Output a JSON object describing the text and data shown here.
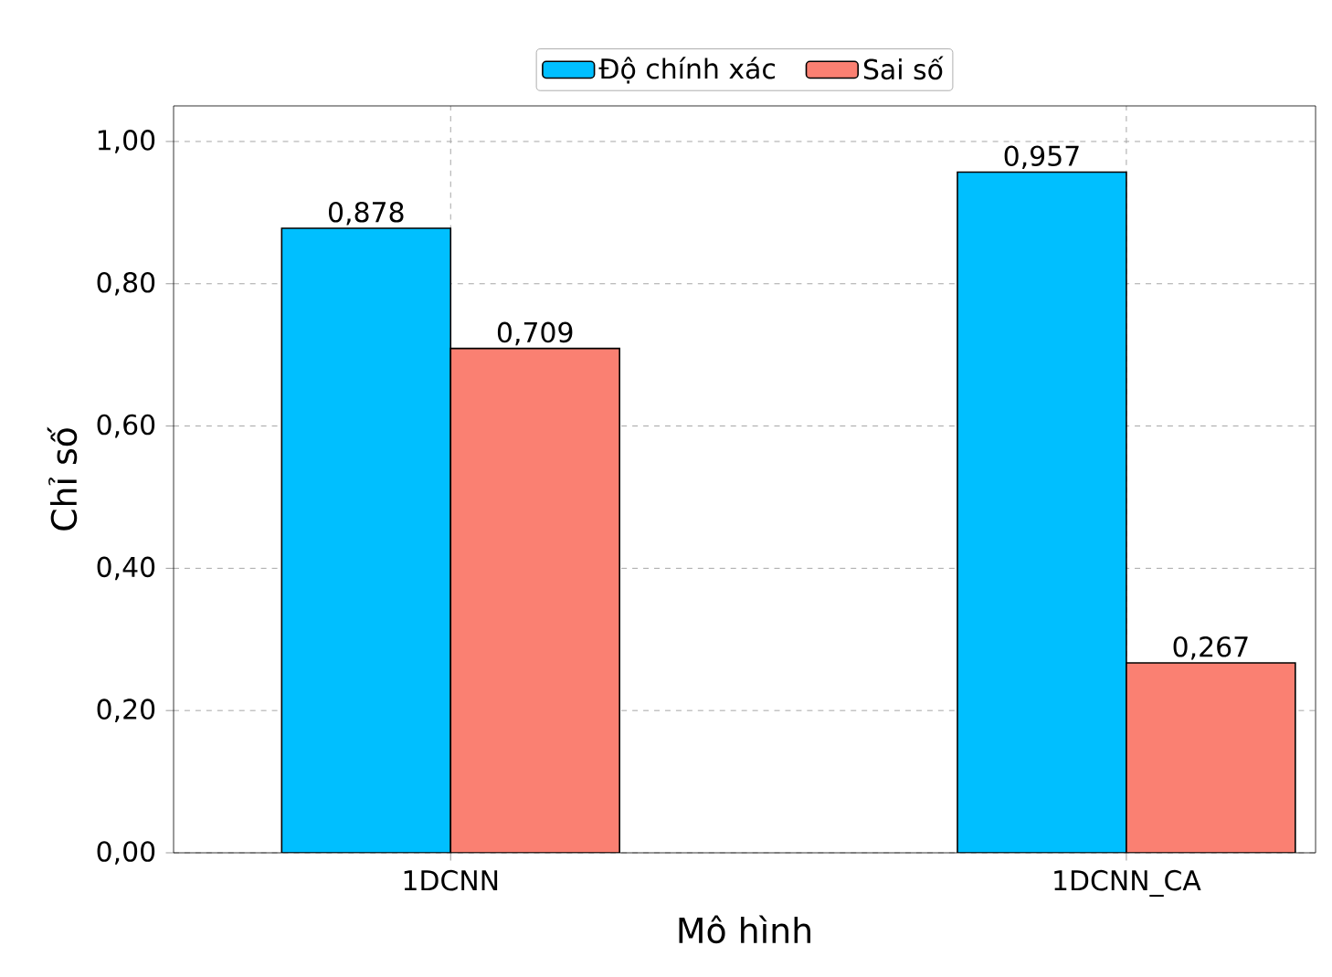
{
  "chart_data": {
    "type": "bar",
    "xlabel": "Mô hình",
    "ylabel": "Chỉ số",
    "categories": [
      "1DCNN",
      "1DCNN_CA"
    ],
    "series": [
      {
        "name": "Độ chính xác",
        "color": "#00bfff",
        "values": [
          0.878,
          0.957
        ],
        "value_labels": [
          "0,878",
          "0,957"
        ]
      },
      {
        "name": "Sai số",
        "color": "#fa8072",
        "values": [
          0.709,
          0.267
        ],
        "value_labels": [
          "0,709",
          "0,267"
        ]
      }
    ],
    "ylim": [
      0,
      1.05
    ],
    "yticks": [
      {
        "value": 0,
        "label": "0,00"
      },
      {
        "value": 0.2,
        "label": "0,20"
      },
      {
        "value": 0.4,
        "label": "0,40"
      },
      {
        "value": 0.6,
        "label": "0,60"
      },
      {
        "value": 0.8,
        "label": "0,80"
      },
      {
        "value": 1.0,
        "label": "1,00"
      }
    ],
    "grid": true,
    "legend": "top"
  }
}
